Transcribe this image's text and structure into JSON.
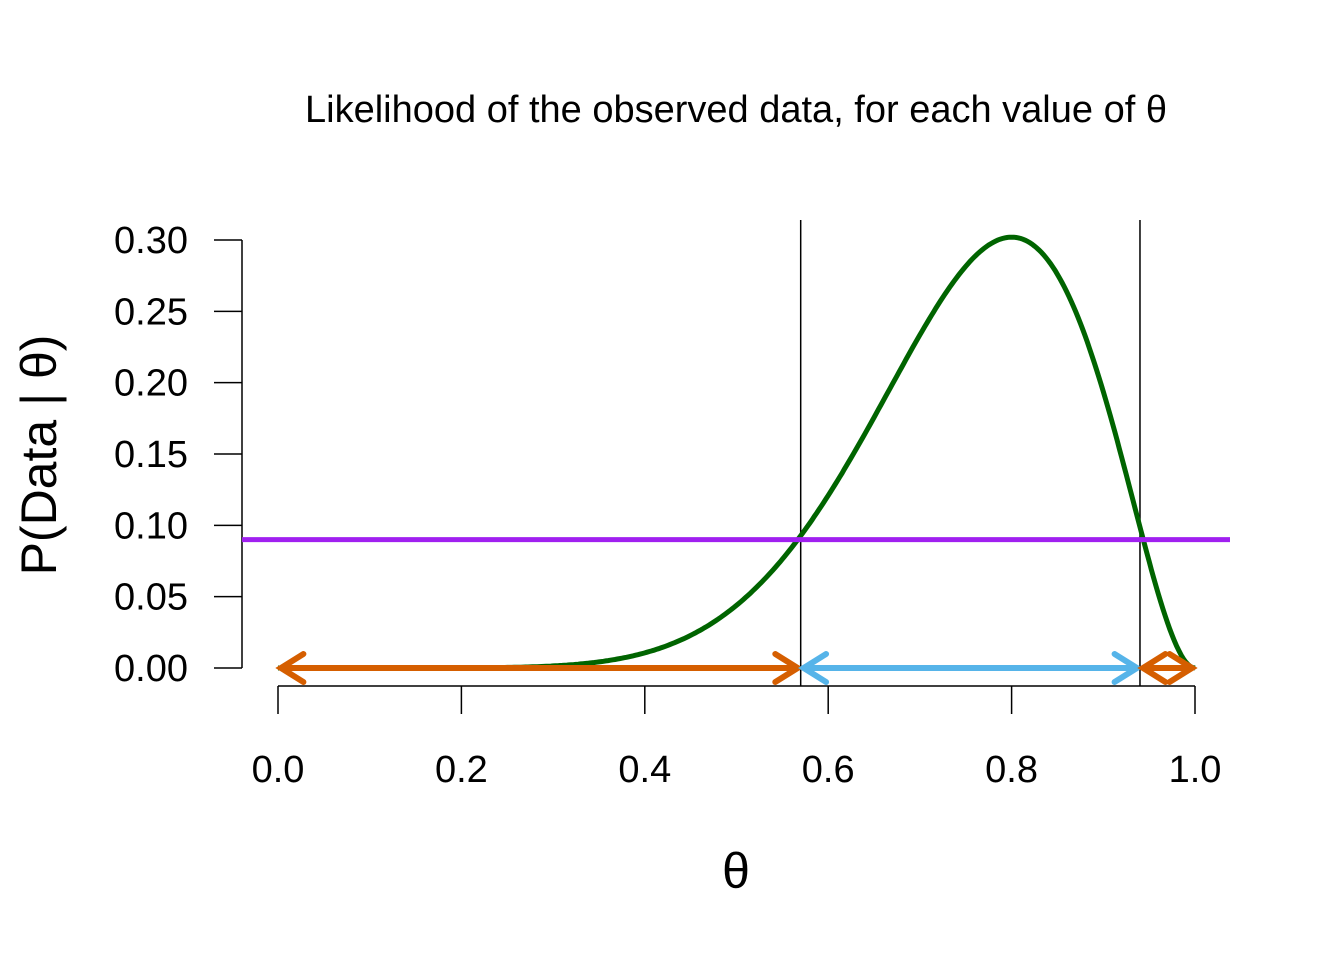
{
  "chart_data": {
    "type": "line",
    "title": "Likelihood of the observed data, for each value of θ",
    "xlabel": "θ",
    "ylabel": "P(Data | θ)",
    "xlim": [
      -0.04,
      1.04
    ],
    "ylim": [
      0,
      0.3
    ],
    "x_ticks": [
      "0.0",
      "0.2",
      "0.4",
      "0.6",
      "0.8",
      "1.0"
    ],
    "y_ticks": [
      "0.00",
      "0.05",
      "0.10",
      "0.15",
      "0.20",
      "0.25",
      "0.30"
    ],
    "grid": false,
    "curve": {
      "description_formula": "binomial likelihood, n=10, k=8",
      "n": 10,
      "k": 8,
      "color": "#006400",
      "peak_x": 0.8,
      "peak_y": 0.302
    },
    "threshold_line": {
      "y": 0.09,
      "color": "#A020F0"
    },
    "vertical_lines": [
      {
        "x": 0.57,
        "color": "#000000"
      },
      {
        "x": 0.94,
        "color": "#000000"
      }
    ],
    "arrows": [
      {
        "from": 0.0,
        "to": 0.57,
        "y": 0,
        "color": "#D55E00"
      },
      {
        "from": 0.57,
        "to": 0.94,
        "y": 0,
        "color": "#56B4E9"
      },
      {
        "from": 0.94,
        "to": 1.0,
        "y": 0,
        "color": "#D55E00"
      }
    ]
  }
}
